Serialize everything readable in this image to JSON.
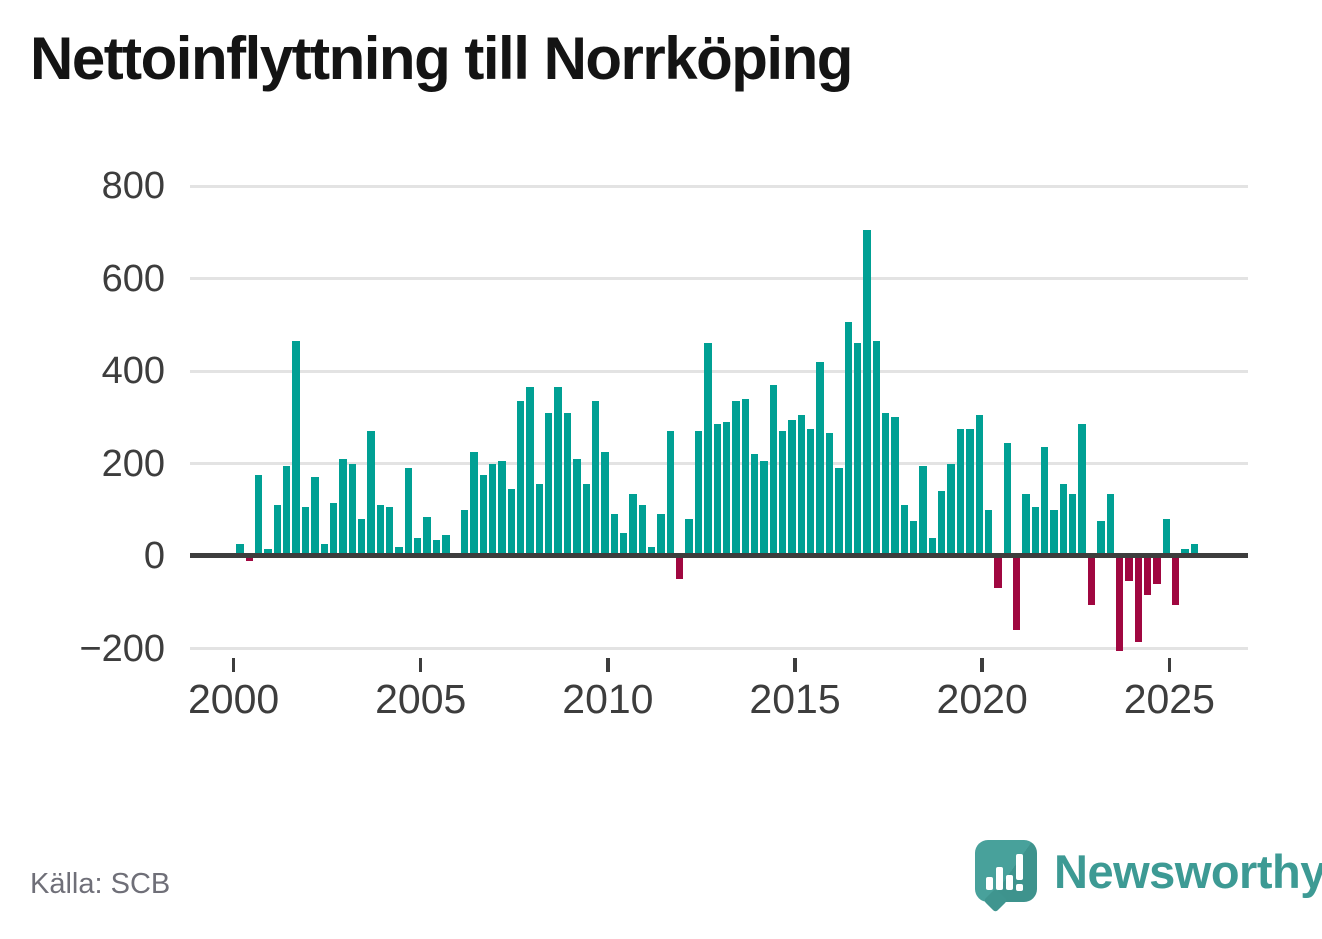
{
  "title": "Nettoinflyttning till Norrköping",
  "source_label": "Källa: SCB",
  "brand_name": "Newsworthy",
  "colors": {
    "positive_bar": "#00a094",
    "negative_bar": "#a00740",
    "axis_text": "#3d3d3d",
    "gridline": "#e3e3e3",
    "title_text": "#141414",
    "source_text": "#6f6f78",
    "brand_teal": "#3d9a94"
  },
  "chart_data": {
    "type": "bar",
    "title": "Nettoinflyttning till Norrköping",
    "frequency": "quarterly",
    "period_start": "2000 Q1",
    "period_end": "2025 Q3",
    "values": [
      25,
      -10,
      175,
      15,
      110,
      195,
      465,
      105,
      170,
      25,
      115,
      210,
      200,
      80,
      270,
      110,
      105,
      20,
      190,
      40,
      85,
      35,
      45,
      0,
      100,
      225,
      175,
      200,
      205,
      145,
      335,
      365,
      155,
      310,
      365,
      310,
      210,
      155,
      335,
      225,
      90,
      50,
      135,
      110,
      20,
      90,
      270,
      -50,
      80,
      270,
      460,
      285,
      290,
      335,
      340,
      220,
      205,
      370,
      270,
      295,
      305,
      275,
      420,
      265,
      190,
      505,
      460,
      705,
      465,
      310,
      300,
      110,
      75,
      195,
      40,
      140,
      200,
      275,
      275,
      305,
      100,
      -70,
      245,
      -160,
      135,
      105,
      235,
      100,
      155,
      135,
      285,
      -105,
      75,
      135,
      -205,
      -55,
      -185,
      -85,
      -60,
      80,
      -105,
      15,
      25
    ],
    "yticks": [
      800,
      600,
      400,
      200,
      0,
      -200
    ],
    "ytick_labels": [
      "800",
      "600",
      "400",
      "200",
      "0",
      "−200"
    ],
    "ylim": [
      -250,
      830
    ],
    "xtick_labels": [
      "2000",
      "2005",
      "2010",
      "2015",
      "2020",
      "2025"
    ],
    "grid": "horizontal",
    "legend": "none",
    "positive_color": "#00a094",
    "negative_color": "#a00740"
  }
}
